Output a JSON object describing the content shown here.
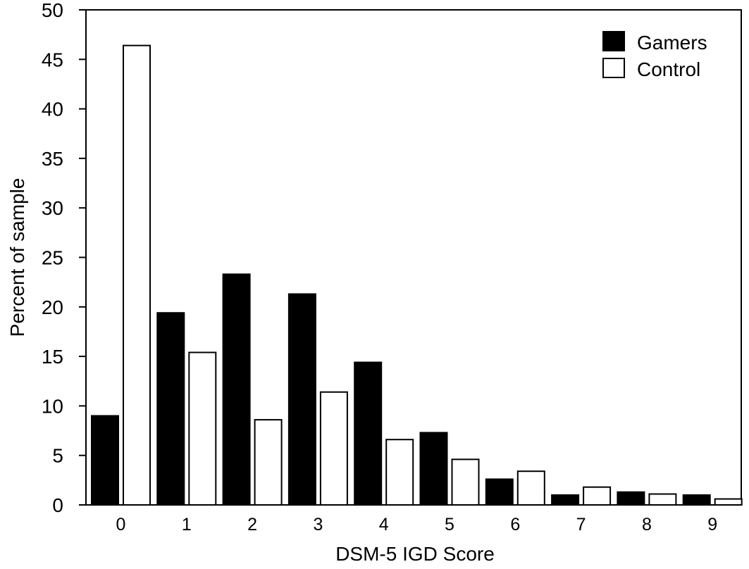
{
  "chart_data": {
    "type": "bar",
    "title": "",
    "xlabel": "DSM-5 IGD Score",
    "ylabel": "Percent of sample",
    "categories": [
      "0",
      "1",
      "2",
      "3",
      "4",
      "5",
      "6",
      "7",
      "8",
      "9"
    ],
    "series": [
      {
        "name": "Gamers",
        "color": "#000000",
        "values": [
          9.0,
          19.4,
          23.3,
          21.3,
          14.4,
          7.3,
          2.6,
          1.0,
          1.3,
          1.0
        ]
      },
      {
        "name": "Control",
        "color": "#ffffff",
        "values": [
          46.4,
          15.4,
          8.6,
          11.4,
          6.6,
          4.6,
          3.4,
          1.8,
          1.1,
          0.6
        ]
      }
    ],
    "ylim": [
      0,
      50
    ],
    "yticks": [
      0,
      5,
      10,
      15,
      20,
      25,
      30,
      35,
      40,
      45,
      50
    ],
    "grid": false,
    "legend_position": "top-right"
  }
}
